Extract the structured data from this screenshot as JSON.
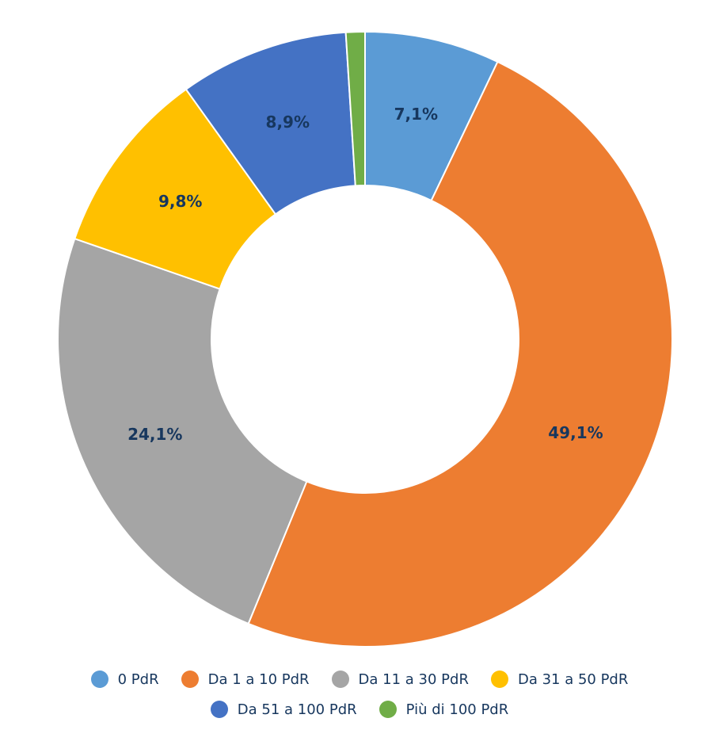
{
  "chart_data": {
    "type": "pie",
    "donut": true,
    "title": "",
    "legend_position": "bottom",
    "categories": [
      "0 PdR",
      "Da 1 a 10 PdR",
      "Da 11 a 30 PdR",
      "Da 31 a 50 PdR",
      "Da 51 a 100 PdR",
      "Più di 100 PdR"
    ],
    "values": [
      7.1,
      49.1,
      24.1,
      9.8,
      8.9,
      1.0
    ],
    "data_labels": [
      "7,1%",
      "49,1%",
      "24,1%",
      "9,8%",
      "8,9%",
      ""
    ],
    "colors": [
      "#5b9bd5",
      "#ed7d31",
      "#a5a5a5",
      "#ffc000",
      "#4472c4",
      "#70ad47"
    ]
  }
}
